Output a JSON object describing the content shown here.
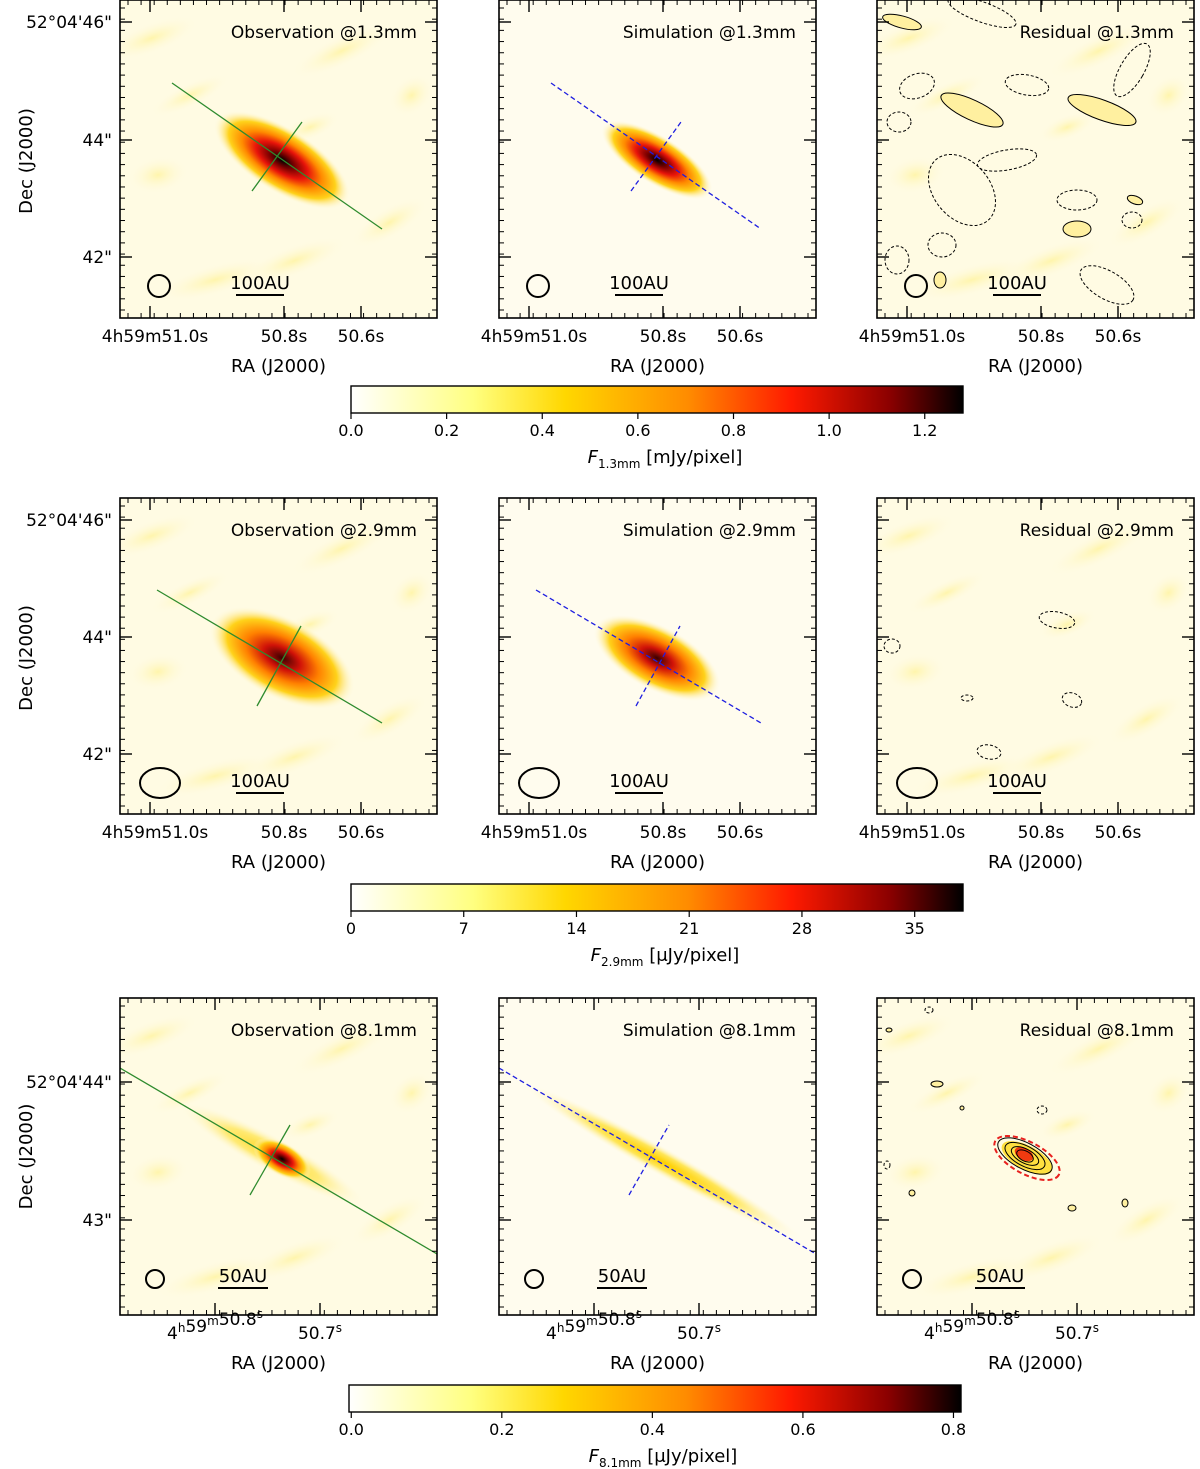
{
  "colors": {
    "cmap": [
      "#ffffff",
      "#ffff80",
      "#ffd700",
      "#ff8c00",
      "#ff1a00",
      "#8b0000",
      "#000000"
    ],
    "obs_axis": "#2e8b2e",
    "sim_axis": "#1f1fe0",
    "residual_contour": "#000000",
    "residual_outline": "#e8201e"
  },
  "rows": [
    {
      "panels": [
        {
          "title": "Observation @1.3mm",
          "kind": "observation",
          "scalebar": "100AU"
        },
        {
          "title": "Simulation @1.3mm",
          "kind": "simulation",
          "scalebar": "100AU"
        },
        {
          "title": "Residual @1.3mm",
          "kind": "residual",
          "scalebar": "100AU"
        }
      ],
      "y_ticks": [
        "52°04'46\"",
        "44\"",
        "42\""
      ],
      "x_ticks": [
        "4h59m51.0s",
        "50.8s",
        "50.6s"
      ],
      "xlabel": "RA (J2000)",
      "ylabel": "Dec (J2000)",
      "colorbar": {
        "ticks": [
          "0.0",
          "0.2",
          "0.4",
          "0.6",
          "0.8",
          "1.0",
          "1.2"
        ],
        "label_main": "F",
        "label_sub": "1.3mm",
        "label_unit": " [mJy/pixel]"
      }
    },
    {
      "panels": [
        {
          "title": "Observation @2.9mm",
          "kind": "observation",
          "scalebar": "100AU"
        },
        {
          "title": "Simulation @2.9mm",
          "kind": "simulation",
          "scalebar": "100AU"
        },
        {
          "title": "Residual @2.9mm",
          "kind": "residual",
          "scalebar": "100AU"
        }
      ],
      "y_ticks": [
        "52°04'46\"",
        "44\"",
        "42\""
      ],
      "x_ticks": [
        "4h59m51.0s",
        "50.8s",
        "50.6s"
      ],
      "xlabel": "RA (J2000)",
      "ylabel": "Dec (J2000)",
      "colorbar": {
        "ticks": [
          "0",
          "7",
          "14",
          "21",
          "28",
          "35"
        ],
        "label_main": "F",
        "label_sub": "2.9mm",
        "label_unit": " [μJy/pixel]"
      }
    },
    {
      "panels": [
        {
          "title": "Observation @8.1mm",
          "kind": "observation",
          "scalebar": "50AU"
        },
        {
          "title": "Simulation @8.1mm",
          "kind": "simulation",
          "scalebar": "50AU"
        },
        {
          "title": "Residual @8.1mm",
          "kind": "residual",
          "scalebar": "50AU"
        }
      ],
      "y_ticks": [
        "52°04'44\"",
        "43\""
      ],
      "x_ticks_main": [
        "4",
        "59",
        "50.8",
        "50.7"
      ],
      "x_ticks_sup": [
        "h",
        "m",
        "s",
        "s"
      ],
      "xlabel": "RA (J2000)",
      "ylabel": "Dec (J2000)",
      "colorbar": {
        "ticks": [
          "0.0",
          "0.2",
          "0.4",
          "0.6",
          "0.8"
        ],
        "label_main": "F",
        "label_sub": "8.1mm",
        "label_unit": " [μJy/pixel]"
      }
    }
  ]
}
